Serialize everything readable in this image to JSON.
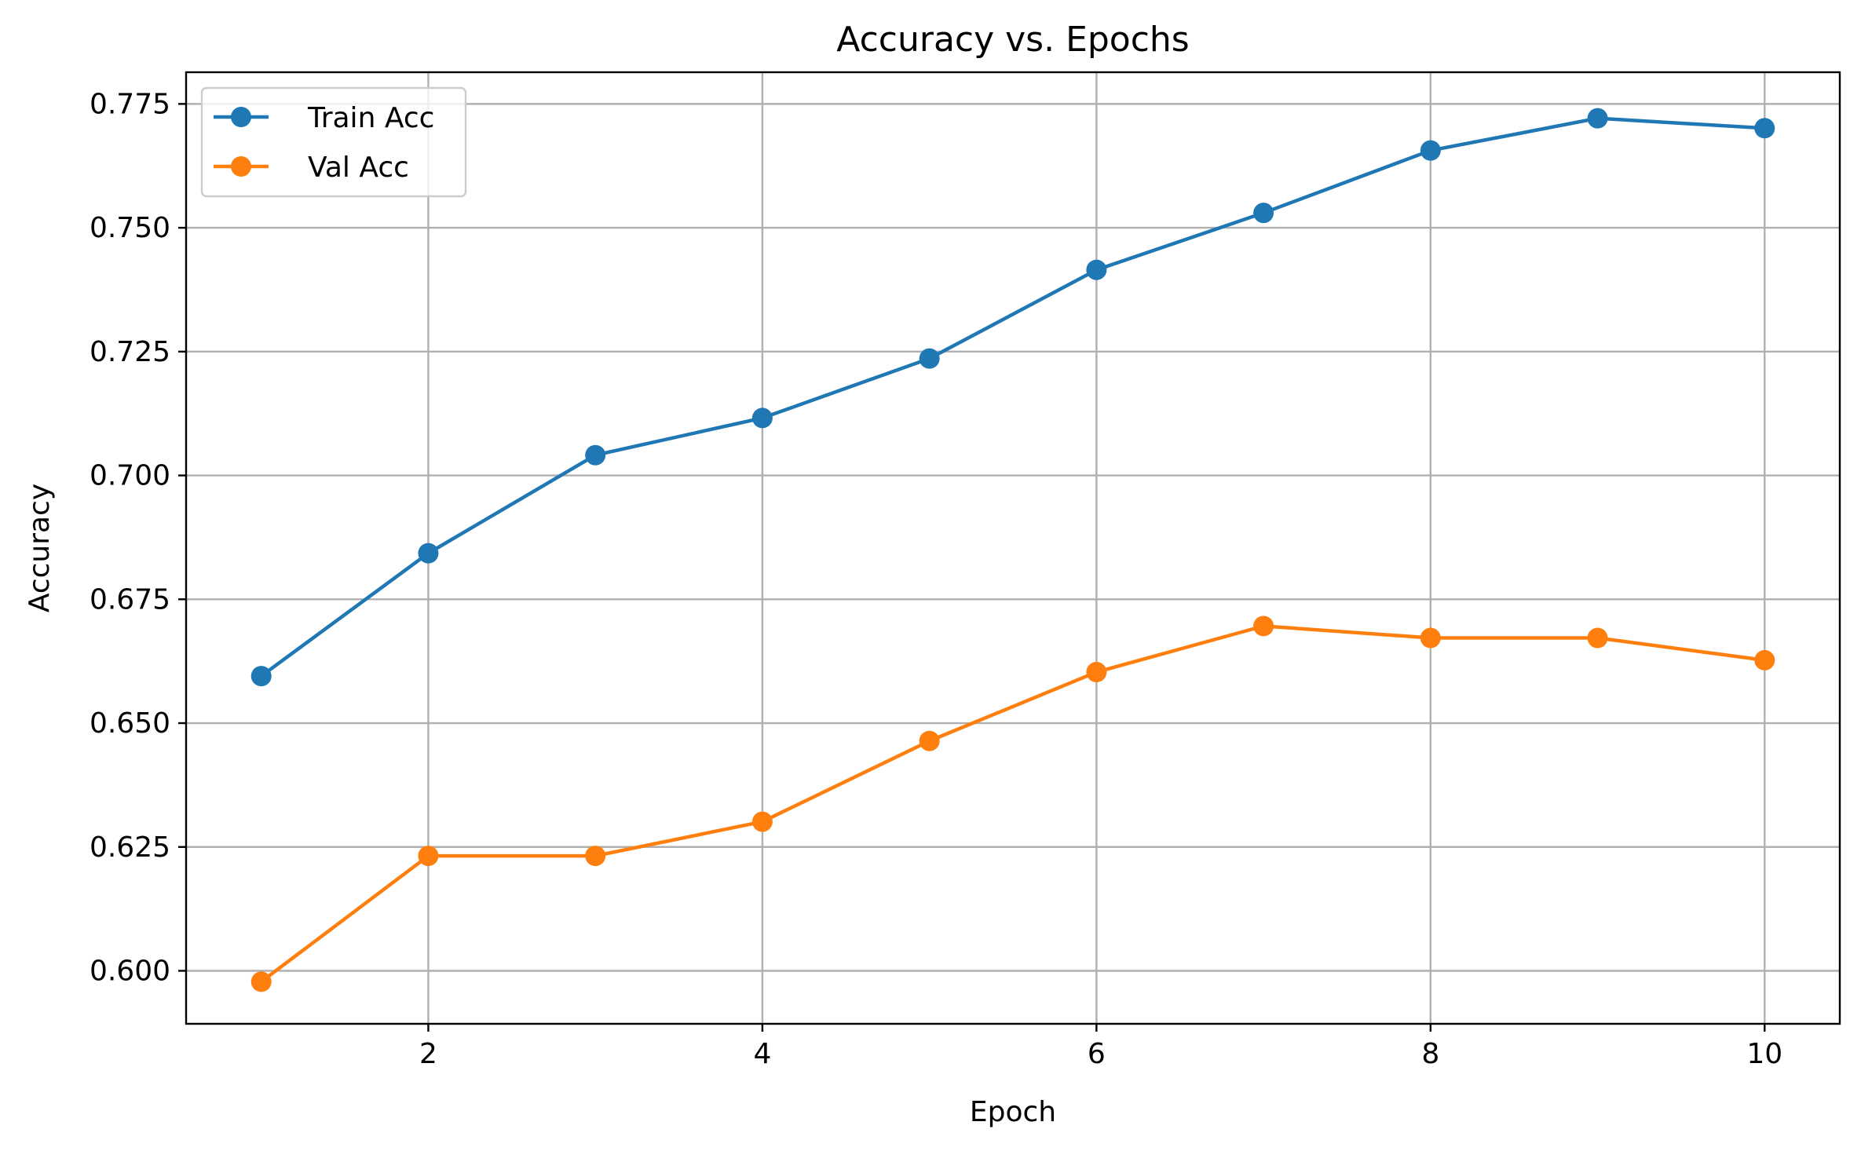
{
  "chart_data": {
    "type": "line",
    "title": "Accuracy vs. Epochs",
    "xlabel": "Epoch",
    "ylabel": "Accuracy",
    "x": [
      1,
      2,
      3,
      4,
      5,
      6,
      7,
      8,
      9,
      10
    ],
    "xlim": [
      0.55,
      10.45
    ],
    "ylim": [
      0.5893,
      0.7814
    ],
    "xticks": [
      2,
      4,
      6,
      8,
      10
    ],
    "xtick_labels": [
      "2",
      "4",
      "6",
      "8",
      "10"
    ],
    "yticks": [
      0.6,
      0.625,
      0.65,
      0.675,
      0.7,
      0.725,
      0.75,
      0.775
    ],
    "ytick_labels": [
      "0.600",
      "0.625",
      "0.650",
      "0.675",
      "0.700",
      "0.725",
      "0.750",
      "0.775"
    ],
    "grid": true,
    "legend_position": "top-left",
    "series": [
      {
        "name": "Train Acc",
        "color": "#1f77b4",
        "marker": "circle",
        "values": [
          0.6595,
          0.6843,
          0.7041,
          0.7116,
          0.7236,
          0.7415,
          0.753,
          0.7656,
          0.7721,
          0.7701
        ]
      },
      {
        "name": "Val Acc",
        "color": "#ff7f0e",
        "marker": "circle",
        "values": [
          0.5978,
          0.6232,
          0.6232,
          0.6301,
          0.6464,
          0.6603,
          0.6696,
          0.6672,
          0.6672,
          0.6627
        ]
      }
    ]
  }
}
